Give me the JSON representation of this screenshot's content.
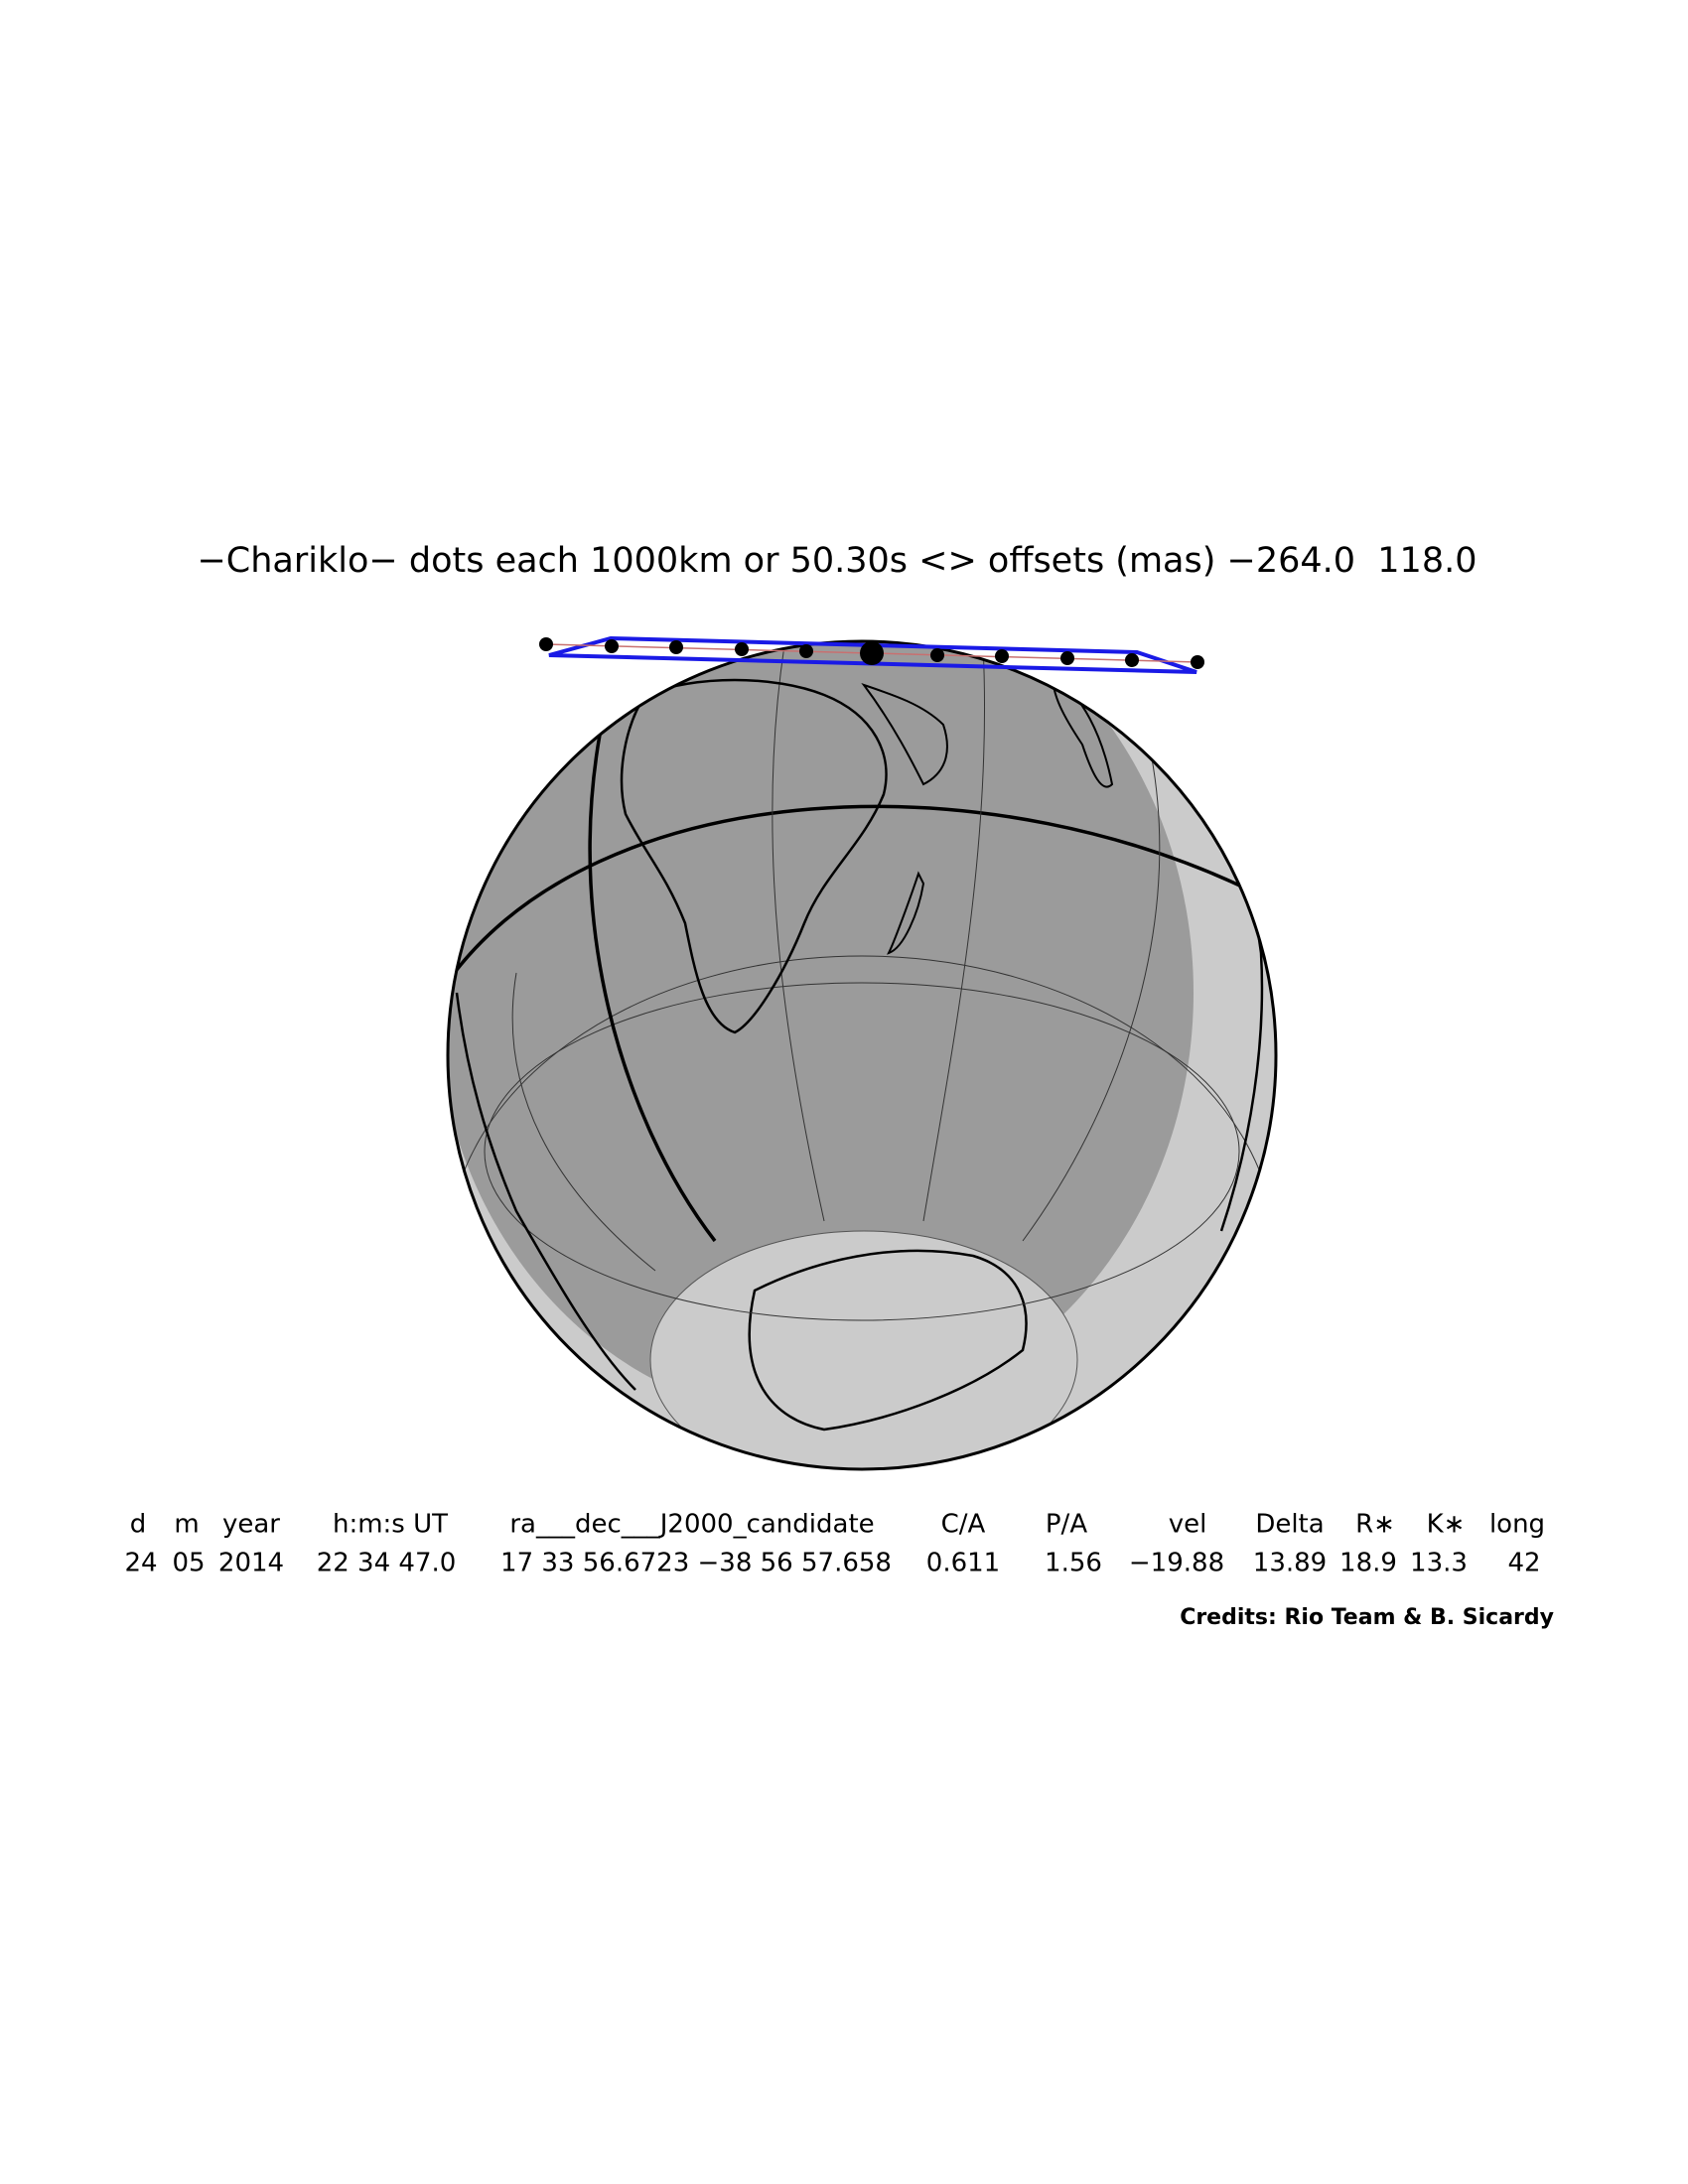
{
  "header": {
    "title": "−Chariklo− dots each 1000km or 50.30s <> offsets (mas) −264.0  118.0"
  },
  "table": {
    "columns": [
      "d",
      "m",
      "year",
      "h:m:s UT",
      "ra___dec___J2000_candidate",
      "C/A",
      "P/A",
      "vel",
      "Delta",
      "R∗",
      "K∗",
      "long"
    ],
    "values": [
      "24",
      "05",
      "2014",
      "22 34 47.0",
      "17 33 56.6723 −38 56 57.658",
      "0.611",
      "1.56",
      "−19.88",
      "13.89",
      "18.9",
      "13.3",
      "42"
    ]
  },
  "credits": "Credits: Rio Team & B. Sicardy"
}
